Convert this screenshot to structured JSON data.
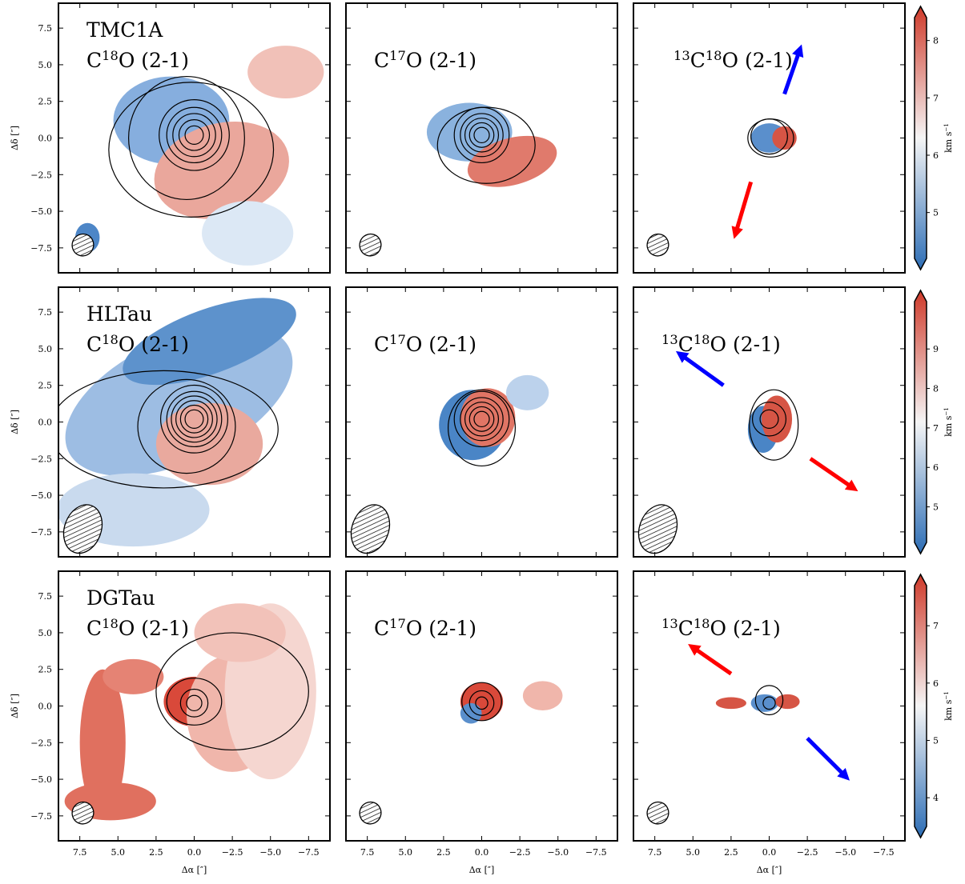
{
  "chart_data": {
    "type": "velocity-map-grid",
    "xlabel": [
      {
        "t": "Δα [″]"
      }
    ],
    "ylabel": [
      {
        "t": "Δδ [″]"
      }
    ],
    "xlim": [
      8.9,
      -8.9
    ],
    "ylim": [
      -9.2,
      9.2
    ],
    "xticks": [
      {
        "value": 7.5,
        "label": "7.5"
      },
      {
        "value": 5,
        "label": "5.0"
      },
      {
        "value": 2.5,
        "label": "2.5"
      },
      {
        "value": 0,
        "label": "0.0"
      },
      {
        "value": -2.5,
        "label": "−2.5"
      },
      {
        "value": -5,
        "label": "−5.0"
      },
      {
        "value": -7.5,
        "label": "−7.5"
      }
    ],
    "yticks": [
      {
        "value": 7.5,
        "label": "7.5"
      },
      {
        "value": 5,
        "label": "5.0"
      },
      {
        "value": 2.5,
        "label": "2.5"
      },
      {
        "value": 0,
        "label": "0.0"
      },
      {
        "value": -2.5,
        "label": "−2.5"
      },
      {
        "value": -5,
        "label": "−5.0"
      },
      {
        "value": -7.5,
        "label": "−7.5"
      }
    ],
    "columns": [
      [
        {
          "t": "C"
        },
        {
          "sup": "18"
        },
        {
          "t": "O (2-1)"
        }
      ],
      [
        {
          "t": "C"
        },
        {
          "sup": "17"
        },
        {
          "t": "O (2-1)"
        }
      ],
      [
        {
          "sup": "13"
        },
        {
          "t": "C"
        },
        {
          "sup": "18"
        },
        {
          "t": "O (2-1)"
        }
      ]
    ],
    "colormap": [
      "#2c6db5",
      "#f5f5f5",
      "#cf3a2a"
    ],
    "colorbar_label": [
      {
        "t": "km s"
      },
      {
        "sup": "−1"
      }
    ],
    "rows": [
      {
        "source": "TMC1A",
        "clim": [
          4.2,
          8.4
        ],
        "cticks": [
          5,
          6,
          7,
          8
        ]
      },
      {
        "source": "HLTau",
        "clim": [
          4.1,
          10.2
        ],
        "cticks": [
          5,
          6,
          7,
          8,
          9
        ]
      },
      {
        "source": "DGTau",
        "clim": [
          3.5,
          7.7
        ],
        "cticks": [
          4,
          5,
          6,
          7
        ]
      }
    ]
  }
}
